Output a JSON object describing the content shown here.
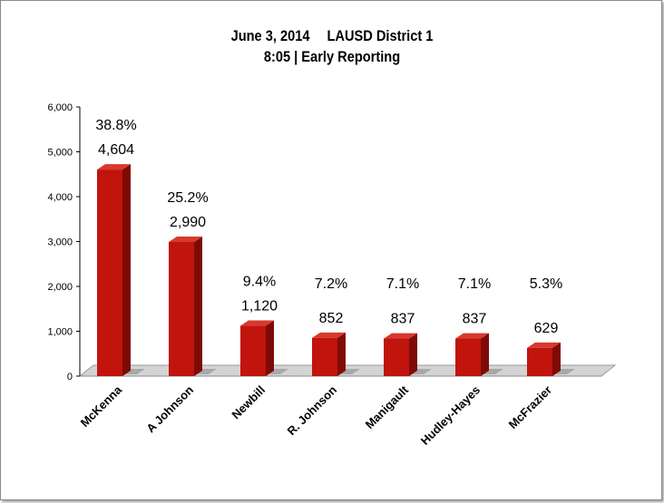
{
  "chart_data": {
    "type": "bar",
    "title_date": "June 3, 2014",
    "title_district": "LAUSD District 1",
    "subtitle": "8:05 | Early Reporting",
    "categories": [
      "McKenna",
      "A Johnson",
      "Newbill",
      "R. Johnson",
      "Manigault",
      "Hudley-Hayes",
      "McFrazier"
    ],
    "values": [
      4604,
      2990,
      1120,
      852,
      837,
      837,
      629
    ],
    "value_labels": [
      "4,604",
      "2,990",
      "1,120",
      "852",
      "837",
      "837",
      "629"
    ],
    "percent_labels": [
      "38.8%",
      "25.2%",
      "9.4%",
      "7.2%",
      "7.1%",
      "7.1%",
      "5.3%"
    ],
    "ylim": [
      0,
      6000
    ],
    "yticks": [
      "0",
      "1,000",
      "2,000",
      "3,000",
      "4,000",
      "5,000",
      "6,000"
    ],
    "yticks_values": [
      0,
      1000,
      2000,
      3000,
      4000,
      5000,
      6000
    ],
    "grid": false,
    "legend": "none",
    "colors": {
      "bar_front": "#c0140c",
      "bar_side": "#7e0a06",
      "bar_top": "#d8382e",
      "floor": "#d4d4d4",
      "floor_edge": "#9a9a9a"
    }
  }
}
